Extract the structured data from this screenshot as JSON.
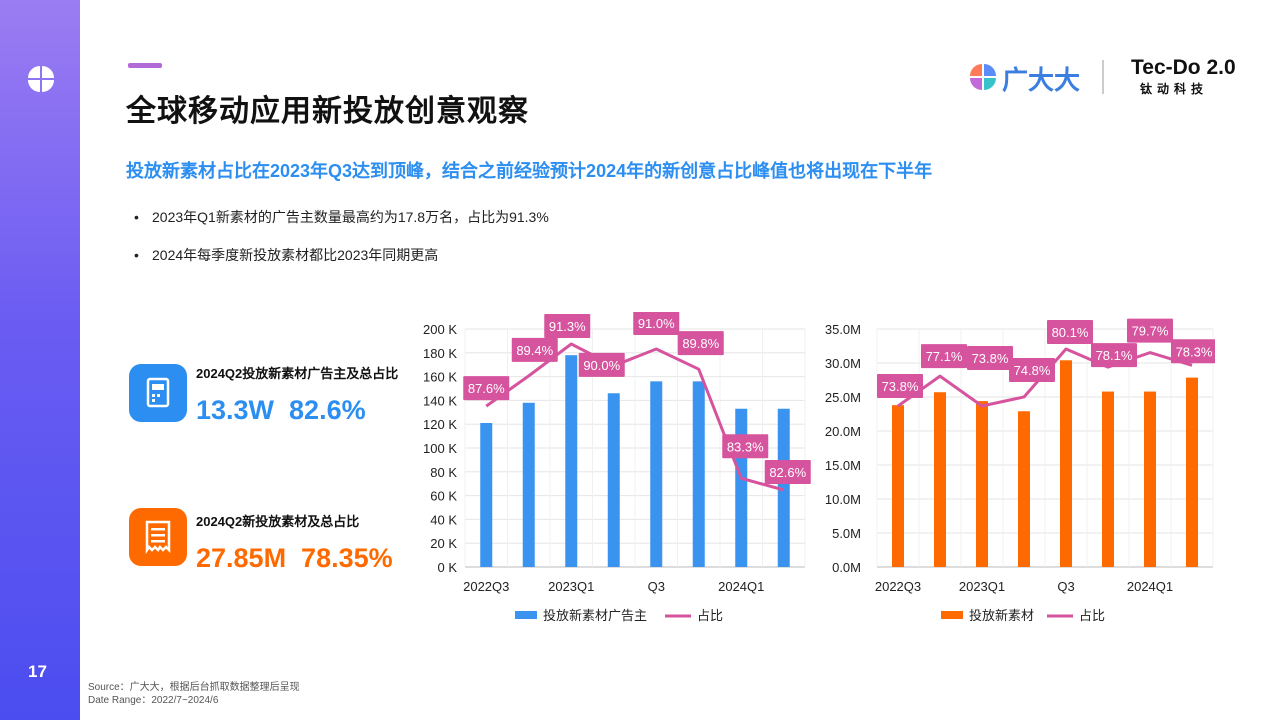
{
  "page_number": "17",
  "title": "全球移动应用新投放创意观察",
  "subtitle": "投放新素材占比在2023年Q3达到顶峰，结合之前经验预计2024年的新创意占比峰值也将出现在下半年",
  "bullets": [
    "2023年Q1新素材的广告主数量最高约为17.8万名，占比为91.3%",
    "2024年每季度新投放素材都比2023年同期更高"
  ],
  "brand": {
    "name": "广大大",
    "tec": "Tec-Do 2.0",
    "tec_sub": "钛动科技"
  },
  "kpis": [
    {
      "label": "2024Q2投放新素材广告主及总占比",
      "value": "13.3W  82.6%",
      "color": "#2b8ef0",
      "icon": "document-icon"
    },
    {
      "label": "2024Q2新投放素材及总占比",
      "value": "27.85M  78.35%",
      "color": "#ff6a00",
      "icon": "receipt-icon"
    }
  ],
  "colors": {
    "blue": "#3b93f0",
    "orange": "#ff6a00",
    "pink": "#d6539d"
  },
  "source": {
    "line1": "Source：广大大，根据后台抓取数据整理后呈现",
    "line2": "Date Range：2022/7~2024/6"
  },
  "chart_data": [
    {
      "type": "bar",
      "categories": [
        "2022Q3",
        "2022Q4",
        "2023Q1",
        "2023Q2",
        "2023Q3",
        "2023Q4",
        "2024Q1",
        "2024Q2"
      ],
      "tick_labels": [
        "2022Q3",
        "",
        "2023Q1",
        "",
        "Q3",
        "",
        "2024Q1",
        ""
      ],
      "y_ticks": [
        "0 K",
        "20 K",
        "40 K",
        "60 K",
        "80 K",
        "100 K",
        "120 K",
        "140 K",
        "160 K",
        "180 K",
        "200 K"
      ],
      "ylim": [
        0,
        200
      ],
      "series": [
        {
          "name": "投放新素材广告主",
          "type": "bar",
          "values": [
            121,
            138,
            178,
            146,
            156,
            156,
            133,
            133
          ]
        },
        {
          "name": "占比",
          "type": "line",
          "values": [
            87.6,
            89.4,
            91.3,
            90.0,
            91.0,
            89.8,
            83.3,
            82.6
          ],
          "labels": [
            "87.6%",
            "89.4%",
            "91.3%",
            "90.0%",
            "91.0%",
            "89.8%",
            "83.3%",
            "82.6%"
          ]
        }
      ],
      "legend_position": "bottom"
    },
    {
      "type": "bar",
      "categories": [
        "2022Q3",
        "2022Q4",
        "2023Q1",
        "2023Q2",
        "2023Q3",
        "2023Q4",
        "2024Q1",
        "2024Q2"
      ],
      "tick_labels": [
        "2022Q3",
        "",
        "2023Q1",
        "",
        "Q3",
        "",
        "2024Q1",
        ""
      ],
      "y_ticks": [
        "0.0M",
        "5.0M",
        "10.0M",
        "15.0M",
        "20.0M",
        "25.0M",
        "30.0M",
        "35.0M"
      ],
      "ylim": [
        0,
        35
      ],
      "series": [
        {
          "name": "投放新素材",
          "type": "bar",
          "values": [
            23.8,
            25.7,
            24.4,
            22.9,
            30.4,
            25.8,
            25.8,
            27.85
          ]
        },
        {
          "name": "占比",
          "type": "line",
          "values": [
            73.8,
            77.1,
            73.8,
            74.8,
            80.1,
            78.1,
            79.7,
            78.3
          ],
          "labels": [
            "73.8%",
            "77.1%",
            "73.8%",
            "74.8%",
            "80.1%",
            "78.1%",
            "79.7%",
            "78.3%"
          ]
        }
      ],
      "legend_position": "bottom"
    }
  ]
}
